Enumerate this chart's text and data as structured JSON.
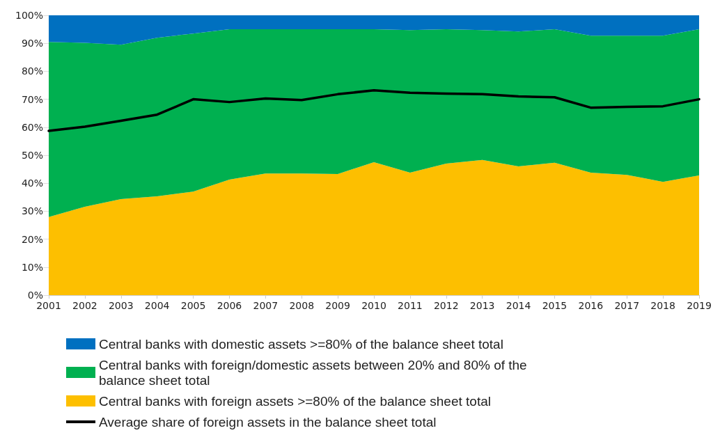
{
  "chart_data": {
    "type": "area",
    "stacked": true,
    "categories": [
      "2001",
      "2002",
      "2003",
      "2004",
      "2005",
      "2006",
      "2007",
      "2008",
      "2009",
      "2010",
      "2011",
      "2012",
      "2013",
      "2014",
      "2015",
      "2016",
      "2017",
      "2018",
      "2019"
    ],
    "series": [
      {
        "name": "Central banks with foreign assets >=80% of the balance sheet total",
        "color": "#fdbf00",
        "values": [
          27.9,
          31.6,
          34.3,
          35.3,
          37,
          41.3,
          43.5,
          43.5,
          43.3,
          47.5,
          43.8,
          47,
          48.3,
          46,
          47.3,
          43.8,
          43,
          40.5,
          42.8
        ]
      },
      {
        "name": "Central banks with foreign/domestic assets between 20% and 80% of the balance sheet total",
        "color": "#00b050",
        "values": [
          62.6,
          58.6,
          55.2,
          56.7,
          56.5,
          53.7,
          51.5,
          51.5,
          51.7,
          47.5,
          50.9,
          48,
          46.4,
          48.2,
          47.7,
          48.9,
          49.7,
          52.2,
          52.2
        ]
      },
      {
        "name": "Central banks with domestic assets >=80% of the balance sheet total",
        "color": "#0070c0",
        "values": [
          9.5,
          9.8,
          10.5,
          8,
          6.5,
          5,
          5,
          5,
          5,
          5,
          5.3,
          5,
          5.3,
          5.8,
          5,
          7.3,
          7.3,
          7.3,
          5
        ]
      },
      {
        "name": "Average share of foreign assets in the balance sheet total",
        "type": "line",
        "color": "#000000",
        "values": [
          58.7,
          60.2,
          62.3,
          64.5,
          70,
          69,
          70.3,
          69.7,
          71.8,
          73.2,
          72.3,
          72,
          71.8,
          71,
          70.7,
          67,
          67.3,
          67.5,
          70
        ]
      }
    ],
    "ylim": [
      0,
      100
    ],
    "yticks": [
      {
        "value": 0,
        "label": "0%"
      },
      {
        "value": 10,
        "label": "10%"
      },
      {
        "value": 20,
        "label": "20%"
      },
      {
        "value": 30,
        "label": "30%"
      },
      {
        "value": 40,
        "label": "40%"
      },
      {
        "value": 50,
        "label": "50%"
      },
      {
        "value": 60,
        "label": "60%"
      },
      {
        "value": 70,
        "label": "70%"
      },
      {
        "value": 80,
        "label": "80%"
      },
      {
        "value": 90,
        "label": "90%"
      },
      {
        "value": 100,
        "label": "100%"
      }
    ],
    "grid": "y",
    "legend": "bottom",
    "marker": "none",
    "line_style": "solid"
  }
}
